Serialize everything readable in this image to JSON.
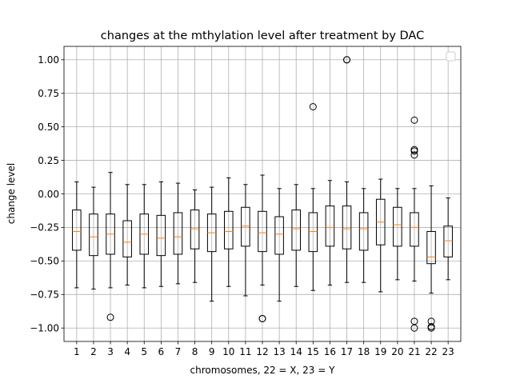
{
  "chart_data": {
    "type": "boxplot",
    "title": "changes at the mthylation level after treatment by DAC",
    "xlabel": "chromosomes, 22 = X, 23 = Y",
    "ylabel": "change level",
    "ylim": [
      -1.1,
      1.1
    ],
    "yticks": [
      -1.0,
      -0.75,
      -0.5,
      -0.25,
      0.0,
      0.25,
      0.5,
      0.75,
      1.0
    ],
    "ytick_labels": [
      "−1.00",
      "−0.75",
      "−0.50",
      "−0.25",
      "0.00",
      "0.25",
      "0.50",
      "0.75",
      "1.00"
    ],
    "categories": [
      "1",
      "2",
      "3",
      "4",
      "5",
      "6",
      "7",
      "8",
      "9",
      "10",
      "11",
      "12",
      "13",
      "14",
      "15",
      "16",
      "17",
      "18",
      "19",
      "20",
      "21",
      "22",
      "23"
    ],
    "grid": true,
    "legend": "top-right, empty",
    "colors": {
      "box": "#000000",
      "median": "#ff7f0e",
      "grid": "#b0b0b0"
    },
    "boxes": [
      {
        "whislo": -0.7,
        "q1": -0.42,
        "med": -0.28,
        "q3": -0.12,
        "whishi": 0.09,
        "fliers": []
      },
      {
        "whislo": -0.71,
        "q1": -0.46,
        "med": -0.32,
        "q3": -0.15,
        "whishi": 0.05,
        "fliers": []
      },
      {
        "whislo": -0.7,
        "q1": -0.45,
        "med": -0.3,
        "q3": -0.15,
        "whishi": 0.16,
        "fliers": [
          -0.92
        ]
      },
      {
        "whislo": -0.68,
        "q1": -0.47,
        "med": -0.36,
        "q3": -0.2,
        "whishi": 0.07,
        "fliers": []
      },
      {
        "whislo": -0.7,
        "q1": -0.45,
        "med": -0.3,
        "q3": -0.15,
        "whishi": 0.07,
        "fliers": []
      },
      {
        "whislo": -0.69,
        "q1": -0.46,
        "med": -0.33,
        "q3": -0.16,
        "whishi": 0.09,
        "fliers": []
      },
      {
        "whislo": -0.67,
        "q1": -0.45,
        "med": -0.32,
        "q3": -0.14,
        "whishi": 0.08,
        "fliers": []
      },
      {
        "whislo": -0.66,
        "q1": -0.41,
        "med": -0.26,
        "q3": -0.12,
        "whishi": 0.03,
        "fliers": []
      },
      {
        "whislo": -0.8,
        "q1": -0.43,
        "med": -0.29,
        "q3": -0.15,
        "whishi": 0.05,
        "fliers": []
      },
      {
        "whislo": -0.69,
        "q1": -0.41,
        "med": -0.28,
        "q3": -0.13,
        "whishi": 0.12,
        "fliers": []
      },
      {
        "whislo": -0.76,
        "q1": -0.39,
        "med": -0.24,
        "q3": -0.1,
        "whishi": 0.07,
        "fliers": []
      },
      {
        "whislo": -0.68,
        "q1": -0.43,
        "med": -0.29,
        "q3": -0.13,
        "whishi": 0.14,
        "fliers": [
          -0.93,
          -0.93
        ]
      },
      {
        "whislo": -0.8,
        "q1": -0.45,
        "med": -0.3,
        "q3": -0.17,
        "whishi": 0.04,
        "fliers": []
      },
      {
        "whislo": -0.69,
        "q1": -0.42,
        "med": -0.26,
        "q3": -0.12,
        "whishi": 0.07,
        "fliers": []
      },
      {
        "whislo": -0.72,
        "q1": -0.43,
        "med": -0.28,
        "q3": -0.14,
        "whishi": 0.04,
        "fliers": [
          0.65
        ]
      },
      {
        "whislo": -0.68,
        "q1": -0.39,
        "med": -0.25,
        "q3": -0.09,
        "whishi": 0.1,
        "fliers": []
      },
      {
        "whislo": -0.66,
        "q1": -0.41,
        "med": -0.26,
        "q3": -0.09,
        "whishi": 0.09,
        "fliers": [
          1.0,
          1.0
        ]
      },
      {
        "whislo": -0.66,
        "q1": -0.42,
        "med": -0.26,
        "q3": -0.14,
        "whishi": 0.04,
        "fliers": []
      },
      {
        "whislo": -0.73,
        "q1": -0.38,
        "med": -0.21,
        "q3": -0.04,
        "whishi": 0.11,
        "fliers": []
      },
      {
        "whislo": -0.64,
        "q1": -0.39,
        "med": -0.23,
        "q3": -0.1,
        "whishi": 0.04,
        "fliers": []
      },
      {
        "whislo": -0.65,
        "q1": -0.39,
        "med": -0.25,
        "q3": -0.14,
        "whishi": 0.04,
        "fliers": [
          0.55,
          0.33,
          0.32,
          0.29,
          -0.95,
          -1.0
        ]
      },
      {
        "whislo": -0.74,
        "q1": -0.52,
        "med": -0.47,
        "q3": -0.28,
        "whishi": 0.06,
        "fliers": [
          -0.95,
          -0.99,
          -1.0
        ]
      },
      {
        "whislo": -0.64,
        "q1": -0.47,
        "med": -0.35,
        "q3": -0.24,
        "whishi": -0.03,
        "fliers": []
      }
    ]
  }
}
